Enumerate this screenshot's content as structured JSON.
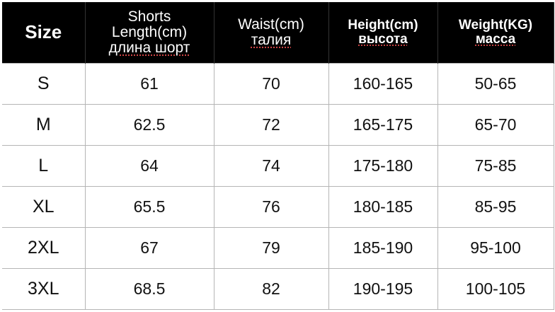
{
  "headers": [
    {
      "lines": [
        "Size"
      ]
    },
    {
      "lines": [
        "Shorts",
        "Length(cm)",
        "длина шорт"
      ]
    },
    {
      "lines": [
        "Waist(cm)",
        "талия"
      ]
    },
    {
      "lines": [
        "Height(cm)",
        "высота"
      ]
    },
    {
      "lines": [
        "Weight(KG)",
        "масса"
      ]
    }
  ],
  "rows": [
    [
      "S",
      "61",
      "70",
      "160-165",
      "50-65"
    ],
    [
      "M",
      "62.5",
      "72",
      "165-175",
      "65-70"
    ],
    [
      "L",
      "64",
      "74",
      "175-180",
      "75-85"
    ],
    [
      "XL",
      "65.5",
      "76",
      "180-185",
      "85-95"
    ],
    [
      "2XL",
      "67",
      "79",
      "185-190",
      "95-100"
    ],
    [
      "3XL",
      "68.5",
      "82",
      "190-195",
      "100-105"
    ]
  ],
  "colors": {
    "header_bg": "#000000",
    "header_text": "#ffffff",
    "grid": "#b5b5b5"
  }
}
